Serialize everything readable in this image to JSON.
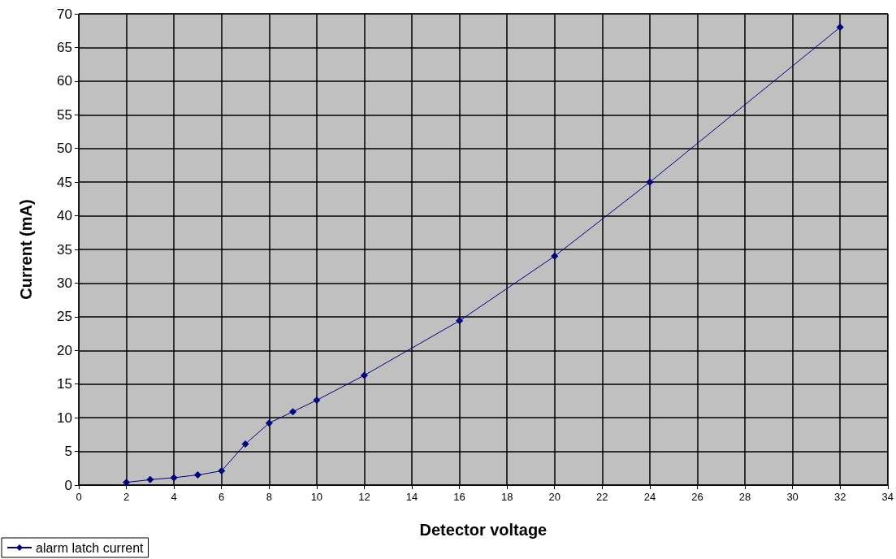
{
  "chart_data": {
    "type": "line",
    "xlabel": "Detector voltage",
    "ylabel": "Current (mA)",
    "x": [
      2,
      3,
      4,
      5,
      6,
      7,
      8,
      9,
      10,
      12,
      16,
      20,
      24,
      32
    ],
    "series": [
      {
        "name": "alarm latch current",
        "color": "#000080",
        "values": [
          0.4,
          0.8,
          1.1,
          1.5,
          2.1,
          6.1,
          9.2,
          10.9,
          12.6,
          16.3,
          24.4,
          34,
          45,
          68
        ]
      }
    ],
    "xlim": [
      0,
      34
    ],
    "xticks": [
      0,
      2,
      4,
      6,
      8,
      10,
      12,
      14,
      16,
      18,
      20,
      22,
      24,
      26,
      28,
      30,
      32,
      34
    ],
    "ylim": [
      0,
      70
    ],
    "yticks": [
      0,
      5,
      10,
      15,
      20,
      25,
      30,
      35,
      40,
      45,
      50,
      55,
      60,
      65,
      70
    ],
    "grid": true,
    "legend": "bottom left",
    "marker": "diamond",
    "line_style": "solid"
  }
}
